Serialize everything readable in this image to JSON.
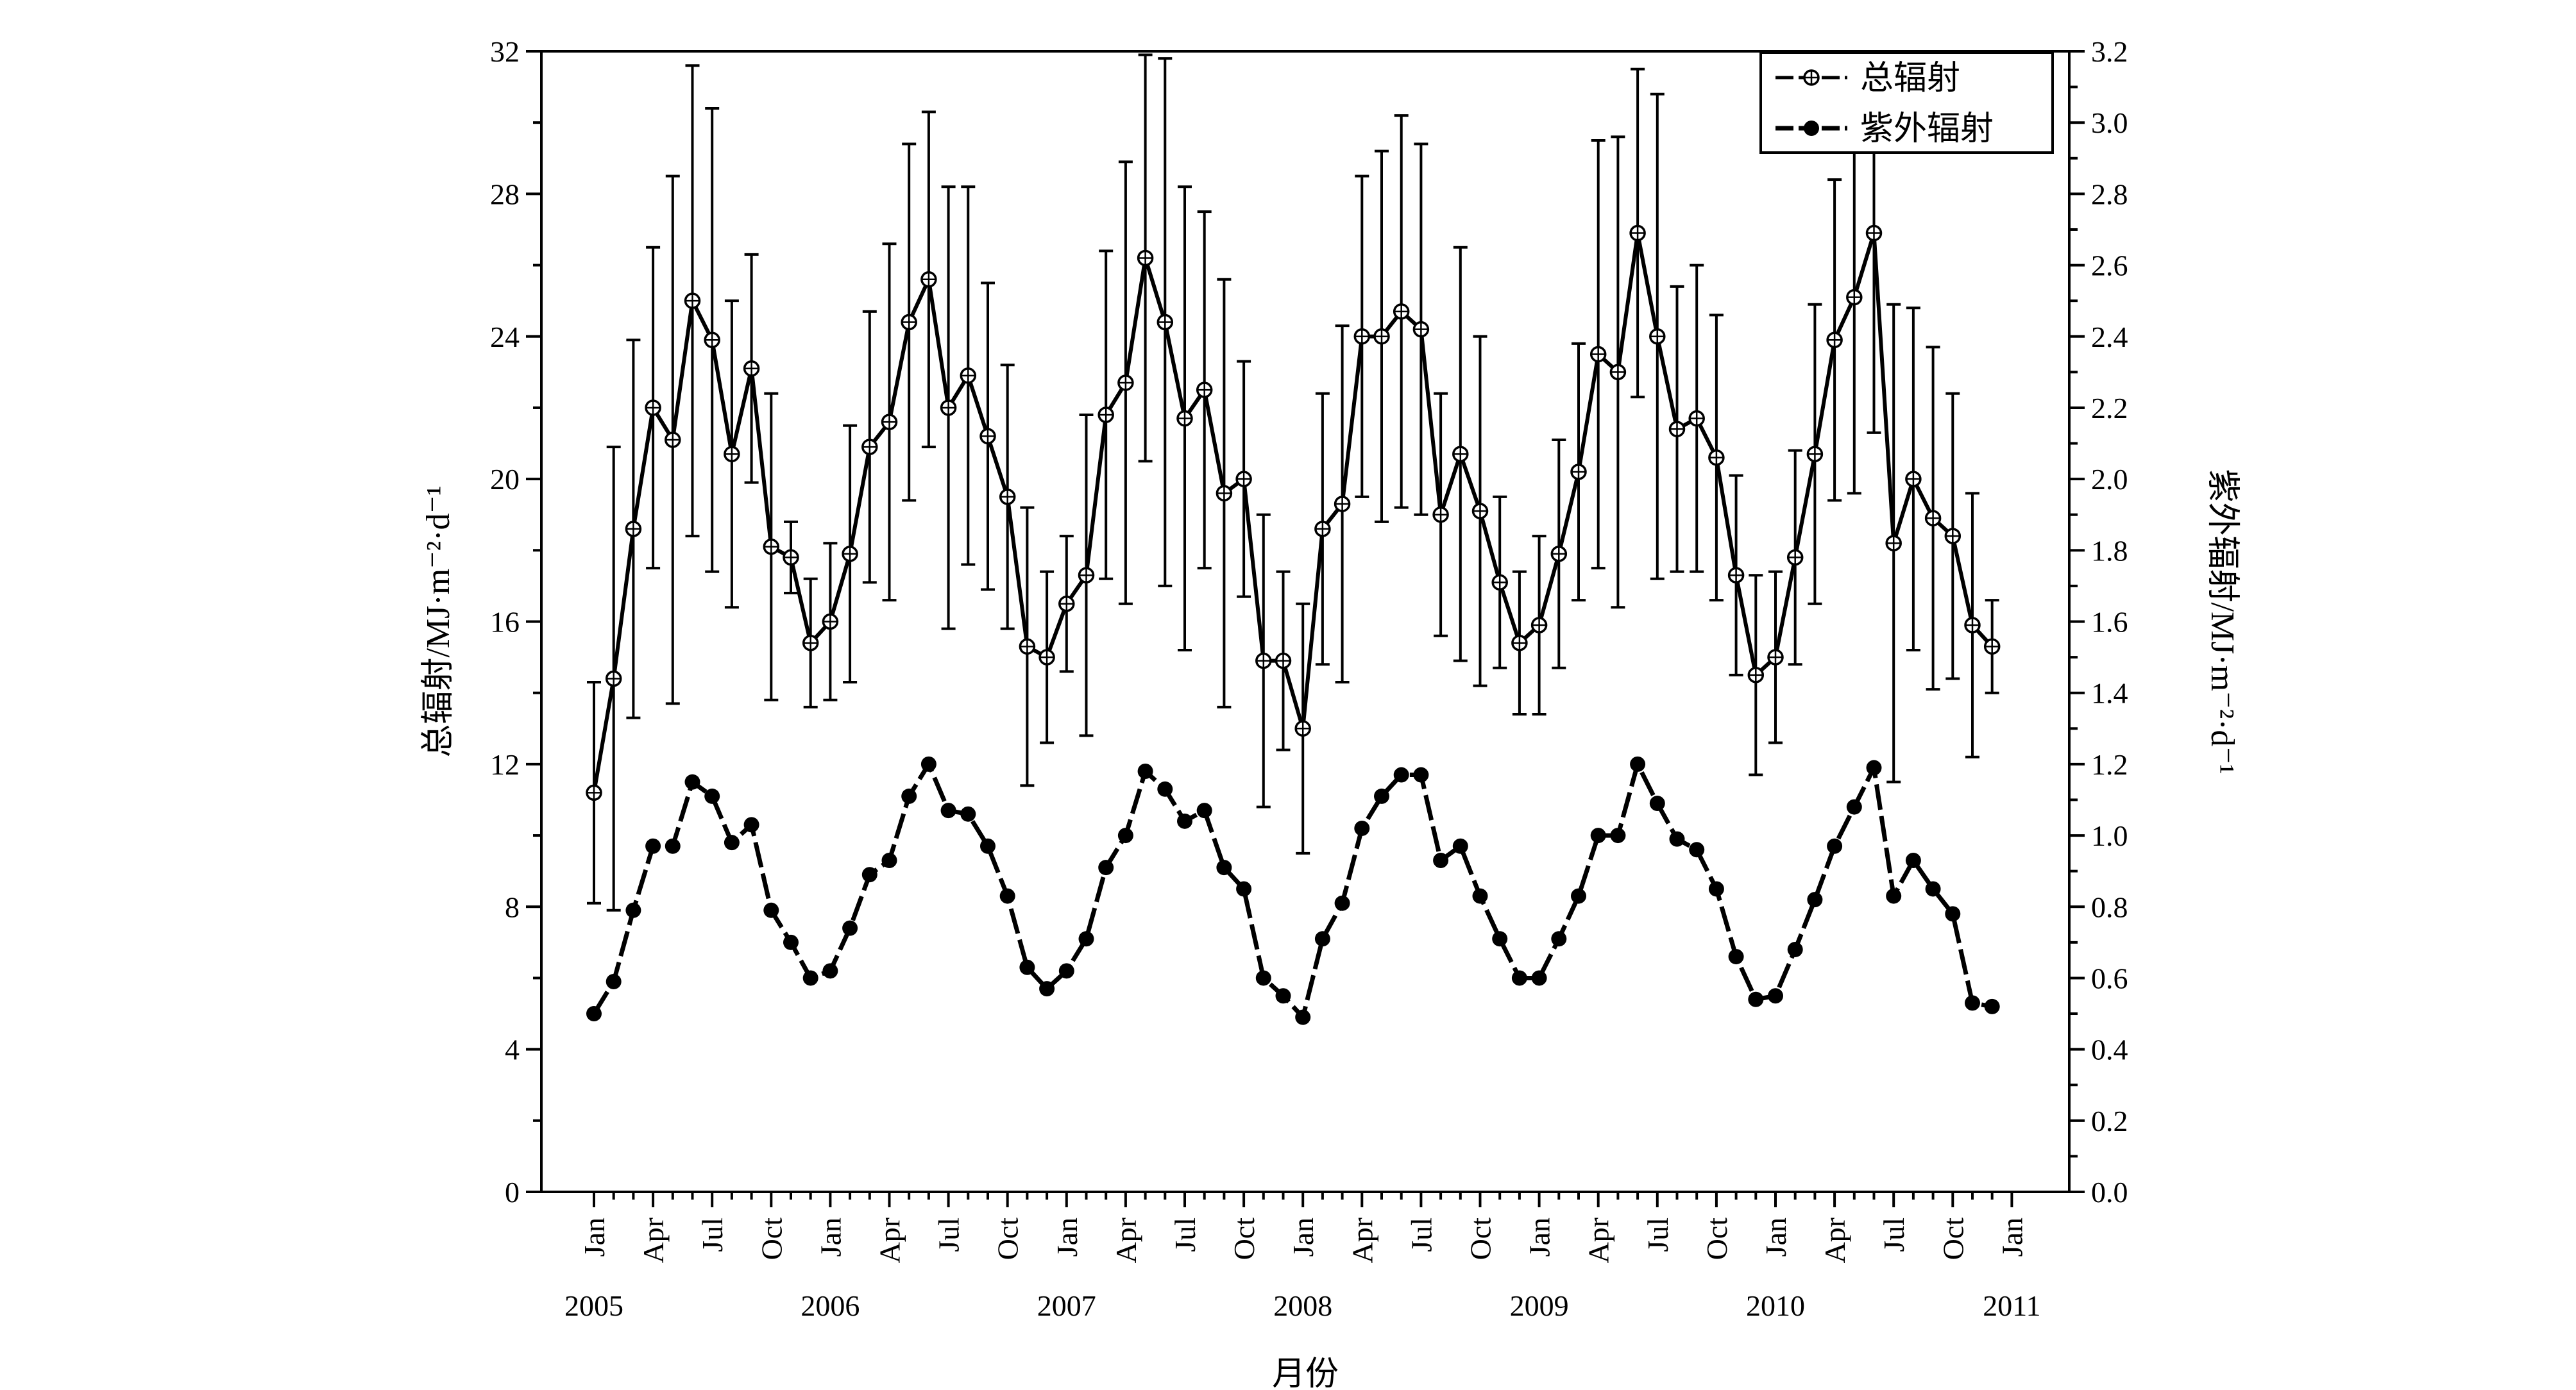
{
  "chart_data": {
    "type": "line",
    "xlabel": "月份",
    "ylabel_left": "总辐射/MJ·m⁻²·d⁻¹",
    "ylabel_right": "紫外辐射/MJ·m⁻²·d⁻¹",
    "ylim_left": [
      0,
      32
    ],
    "ylim_right": [
      0,
      3.2
    ],
    "yticks_left": [
      "0",
      "4",
      "8",
      "12",
      "16",
      "20",
      "24",
      "28",
      "32"
    ],
    "yticks_right": [
      "0.0",
      "0.2",
      "0.4",
      "0.6",
      "0.8",
      "1.0",
      "1.2",
      "1.4",
      "1.6",
      "1.8",
      "2.0",
      "2.2",
      "2.4",
      "2.6",
      "2.8",
      "3.0",
      "3.2"
    ],
    "month_ticks": [
      "Jan",
      "Apr",
      "Jul",
      "Oct",
      "Jan",
      "Apr",
      "Jul",
      "Oct",
      "Jan",
      "Apr",
      "Jul",
      "Oct",
      "Jan",
      "Apr",
      "Jul",
      "Oct",
      "Jan",
      "Apr",
      "Jul",
      "Oct",
      "Jan",
      "Apr",
      "Jul",
      "Oct",
      "Jan"
    ],
    "year_labels": [
      "2005",
      "2006",
      "2007",
      "2008",
      "2009",
      "2010",
      "2011"
    ],
    "legend": {
      "position": "top-right",
      "entries": [
        "总辐射",
        "紫外辐射"
      ]
    },
    "grid": false,
    "series": [
      {
        "name": "总辐射",
        "axis": "left",
        "marker": "circle-plus",
        "values": [
          11.2,
          14.4,
          18.6,
          22.0,
          21.1,
          25.0,
          23.9,
          20.7,
          23.1,
          18.1,
          17.8,
          15.4,
          16.0,
          17.9,
          20.9,
          21.6,
          24.4,
          25.6,
          22.0,
          22.9,
          21.2,
          19.5,
          15.3,
          15.0,
          16.5,
          17.3,
          21.8,
          22.7,
          26.2,
          24.4,
          21.7,
          22.5,
          19.6,
          20.0,
          14.9,
          14.9,
          13.0,
          18.6,
          19.3,
          24.0,
          24.0,
          24.7,
          24.2,
          19.0,
          20.7,
          19.1,
          17.1,
          15.4,
          15.9,
          17.9,
          20.2,
          23.5,
          23.0,
          26.9,
          24.0,
          21.4,
          21.7,
          20.6,
          17.3,
          14.5,
          15.0,
          17.8,
          20.7,
          23.9,
          25.1,
          26.9,
          18.2,
          20.0,
          18.9,
          18.4,
          15.9,
          15.3
        ],
        "errors": [
          3.1,
          6.5,
          5.3,
          4.5,
          7.4,
          6.6,
          6.5,
          4.3,
          3.2,
          4.3,
          1.0,
          1.8,
          2.2,
          3.6,
          3.8,
          5.0,
          5.0,
          4.7,
          6.2,
          5.3,
          4.3,
          3.7,
          3.9,
          2.4,
          1.9,
          4.5,
          4.6,
          6.2,
          5.7,
          7.4,
          6.5,
          5.0,
          6.0,
          3.3,
          4.1,
          2.5,
          3.5,
          3.8,
          5.0,
          4.5,
          5.2,
          5.5,
          5.2,
          3.4,
          5.8,
          4.9,
          2.4,
          2.0,
          2.5,
          3.2,
          3.6,
          6.0,
          6.6,
          4.6,
          6.8,
          4.0,
          4.3,
          4.0,
          2.8,
          2.8,
          2.4,
          3.0,
          4.2,
          4.5,
          5.5,
          5.6,
          6.7,
          4.8,
          4.8,
          4.0,
          3.7,
          1.3
        ]
      },
      {
        "name": "紫外辐射",
        "axis": "right",
        "marker": "filled-circle",
        "values": [
          0.5,
          0.59,
          0.79,
          0.97,
          0.97,
          1.15,
          1.11,
          0.98,
          1.03,
          0.79,
          0.7,
          0.6,
          0.62,
          0.74,
          0.89,
          0.93,
          1.11,
          1.2,
          1.07,
          1.06,
          0.97,
          0.83,
          0.63,
          0.57,
          0.62,
          0.71,
          0.91,
          1.0,
          1.18,
          1.13,
          1.04,
          1.07,
          0.91,
          0.85,
          0.6,
          0.55,
          0.49,
          0.71,
          0.81,
          1.02,
          1.11,
          1.17,
          1.17,
          0.93,
          0.97,
          0.83,
          0.71,
          0.6,
          0.6,
          0.71,
          0.83,
          1.0,
          1.0,
          1.2,
          1.09,
          0.99,
          0.96,
          0.85,
          0.66,
          0.54,
          0.55,
          0.68,
          0.82,
          0.97,
          1.08,
          1.19,
          0.83,
          0.93,
          0.85,
          0.78,
          0.53,
          0.52
        ]
      }
    ]
  }
}
